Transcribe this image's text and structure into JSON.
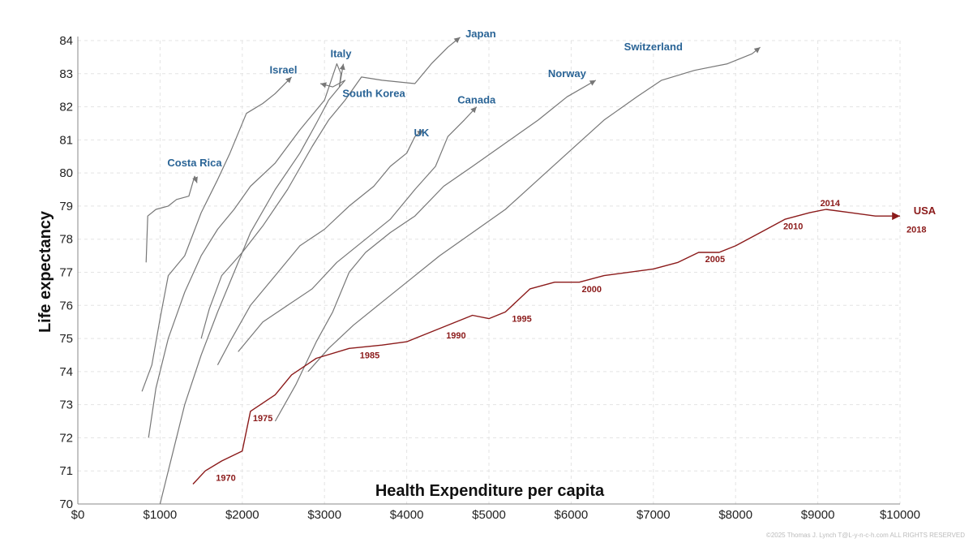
{
  "chart_data": {
    "type": "line",
    "xlabel": "Health Expenditure per capita",
    "ylabel": "Life expectancy",
    "xlim": [
      0,
      10000
    ],
    "ylim": [
      70,
      84
    ],
    "x_ticks": [
      0,
      1000,
      2000,
      3000,
      4000,
      5000,
      6000,
      7000,
      8000,
      9000,
      10000
    ],
    "x_tick_labels": [
      "$0",
      "$1000",
      "$2000",
      "$3000",
      "$4000",
      "$5000",
      "$6000",
      "$7000",
      "$8000",
      "$9000",
      "$10000"
    ],
    "y_ticks": [
      70,
      71,
      72,
      73,
      74,
      75,
      76,
      77,
      78,
      79,
      80,
      81,
      82,
      83,
      84
    ],
    "y_tick_labels": [
      "70",
      "71",
      "72",
      "73",
      "74",
      "75",
      "76",
      "77",
      "78",
      "79",
      "80",
      "81",
      "82",
      "83",
      "84"
    ],
    "grid": true,
    "colors": {
      "countries": "#777777",
      "country_labels": "#2a6496",
      "usa": "#8b1a1a"
    },
    "series": [
      {
        "name": "Costa Rica",
        "points": [
          [
            830,
            77.3
          ],
          [
            850,
            78.7
          ],
          [
            950,
            78.9
          ],
          [
            1100,
            79.0
          ],
          [
            1200,
            79.2
          ],
          [
            1350,
            79.3
          ],
          [
            1420,
            79.9
          ],
          [
            1450,
            79.7
          ]
        ]
      },
      {
        "name": "Israel",
        "points": [
          [
            780,
            73.4
          ],
          [
            900,
            74.2
          ],
          [
            1000,
            75.6
          ],
          [
            1100,
            76.9
          ],
          [
            1300,
            77.5
          ],
          [
            1500,
            78.8
          ],
          [
            1700,
            79.8
          ],
          [
            1850,
            80.6
          ],
          [
            2050,
            81.8
          ],
          [
            2250,
            82.1
          ],
          [
            2400,
            82.4
          ],
          [
            2600,
            82.9
          ]
        ]
      },
      {
        "name": "Italy",
        "points": [
          [
            860,
            72.0
          ],
          [
            950,
            73.5
          ],
          [
            1100,
            75.0
          ],
          [
            1300,
            76.4
          ],
          [
            1500,
            77.5
          ],
          [
            1700,
            78.3
          ],
          [
            1900,
            78.9
          ],
          [
            2100,
            79.6
          ],
          [
            2400,
            80.3
          ],
          [
            2700,
            81.3
          ],
          [
            3000,
            82.2
          ],
          [
            3150,
            83.3
          ],
          [
            3200,
            83.0
          ],
          [
            3180,
            82.6
          ],
          [
            3230,
            83.3
          ]
        ]
      },
      {
        "name": "South Korea",
        "points": [
          [
            1000,
            70.0
          ],
          [
            1150,
            71.5
          ],
          [
            1300,
            73.0
          ],
          [
            1500,
            74.5
          ],
          [
            1700,
            75.8
          ],
          [
            1900,
            77.0
          ],
          [
            2100,
            78.2
          ],
          [
            2400,
            79.5
          ],
          [
            2700,
            80.6
          ],
          [
            2900,
            81.5
          ],
          [
            3050,
            82.2
          ],
          [
            3250,
            82.8
          ],
          [
            3100,
            82.6
          ],
          [
            2950,
            82.7
          ]
        ]
      },
      {
        "name": "Japan",
        "points": [
          [
            1500,
            75.0
          ],
          [
            1600,
            75.9
          ],
          [
            1750,
            76.9
          ],
          [
            2000,
            77.6
          ],
          [
            2250,
            78.4
          ],
          [
            2550,
            79.5
          ],
          [
            2850,
            80.8
          ],
          [
            3050,
            81.6
          ],
          [
            3250,
            82.2
          ],
          [
            3450,
            82.9
          ],
          [
            3700,
            82.8
          ],
          [
            4100,
            82.7
          ],
          [
            4300,
            83.3
          ],
          [
            4500,
            83.8
          ],
          [
            4650,
            84.1
          ]
        ]
      },
      {
        "name": "UK",
        "points": [
          [
            1700,
            74.2
          ],
          [
            1850,
            74.9
          ],
          [
            2100,
            76.0
          ],
          [
            2400,
            76.9
          ],
          [
            2700,
            77.8
          ],
          [
            3000,
            78.3
          ],
          [
            3300,
            79.0
          ],
          [
            3600,
            79.6
          ],
          [
            3800,
            80.2
          ],
          [
            4000,
            80.6
          ],
          [
            4100,
            81.1
          ],
          [
            4200,
            81.3
          ]
        ]
      },
      {
        "name": "Canada",
        "points": [
          [
            1950,
            74.6
          ],
          [
            2250,
            75.5
          ],
          [
            2550,
            76.0
          ],
          [
            2850,
            76.5
          ],
          [
            3150,
            77.3
          ],
          [
            3500,
            78.0
          ],
          [
            3800,
            78.6
          ],
          [
            4100,
            79.5
          ],
          [
            4350,
            80.2
          ],
          [
            4500,
            81.1
          ],
          [
            4700,
            81.6
          ],
          [
            4850,
            82.0
          ]
        ]
      },
      {
        "name": "Norway",
        "points": [
          [
            2400,
            72.5
          ],
          [
            2650,
            73.6
          ],
          [
            2900,
            74.9
          ],
          [
            3100,
            75.8
          ],
          [
            3300,
            77.0
          ],
          [
            3500,
            77.6
          ],
          [
            3800,
            78.2
          ],
          [
            4100,
            78.7
          ],
          [
            4450,
            79.6
          ],
          [
            4800,
            80.2
          ],
          [
            5200,
            80.9
          ],
          [
            5600,
            81.6
          ],
          [
            5950,
            82.3
          ],
          [
            6300,
            82.8
          ]
        ]
      },
      {
        "name": "Switzerland",
        "points": [
          [
            2800,
            74.0
          ],
          [
            3050,
            74.7
          ],
          [
            3350,
            75.4
          ],
          [
            3700,
            76.1
          ],
          [
            4050,
            76.8
          ],
          [
            4400,
            77.5
          ],
          [
            4800,
            78.2
          ],
          [
            5200,
            78.9
          ],
          [
            5600,
            79.8
          ],
          [
            6000,
            80.7
          ],
          [
            6400,
            81.6
          ],
          [
            6800,
            82.3
          ],
          [
            7100,
            82.8
          ],
          [
            7500,
            83.1
          ],
          [
            7900,
            83.3
          ],
          [
            8200,
            83.6
          ],
          [
            8300,
            83.8
          ]
        ]
      },
      {
        "name": "USA",
        "points": [
          [
            1400,
            70.6
          ],
          [
            1550,
            71.0
          ],
          [
            1750,
            71.3
          ],
          [
            2000,
            71.6
          ],
          [
            2100,
            72.8
          ],
          [
            2400,
            73.3
          ],
          [
            2600,
            73.9
          ],
          [
            2900,
            74.4
          ],
          [
            3300,
            74.7
          ],
          [
            3700,
            74.8
          ],
          [
            4000,
            74.9
          ],
          [
            4300,
            75.2
          ],
          [
            4800,
            75.7
          ],
          [
            5000,
            75.6
          ],
          [
            5200,
            75.8
          ],
          [
            5500,
            76.5
          ],
          [
            5800,
            76.7
          ],
          [
            6100,
            76.7
          ],
          [
            6400,
            76.9
          ],
          [
            7000,
            77.1
          ],
          [
            7300,
            77.3
          ],
          [
            7550,
            77.6
          ],
          [
            7800,
            77.6
          ],
          [
            8000,
            77.8
          ],
          [
            8300,
            78.2
          ],
          [
            8600,
            78.6
          ],
          [
            8900,
            78.8
          ],
          [
            9100,
            78.9
          ],
          [
            9400,
            78.8
          ],
          [
            9700,
            78.7
          ],
          [
            10000,
            78.7
          ]
        ]
      }
    ],
    "label_positions": [
      {
        "name": "Costa Rica",
        "x": 1420,
        "y": 80.3
      },
      {
        "name": "Israel",
        "x": 2500,
        "y": 83.1
      },
      {
        "name": "Italy",
        "x": 3200,
        "y": 83.6
      },
      {
        "name": "South Korea",
        "x": 3600,
        "y": 82.4
      },
      {
        "name": "Japan",
        "x": 4900,
        "y": 84.2
      },
      {
        "name": "UK",
        "x": 4180,
        "y": 81.2
      },
      {
        "name": "Canada",
        "x": 4850,
        "y": 82.2
      },
      {
        "name": "Norway",
        "x": 5950,
        "y": 83.0
      },
      {
        "name": "Switzerland",
        "x": 7000,
        "y": 83.8
      },
      {
        "name": "USA",
        "x": 10300,
        "y": 78.9
      }
    ],
    "usa_year_labels": [
      {
        "year": "1970",
        "x": 1800,
        "y": 70.8
      },
      {
        "year": "1975",
        "x": 2250,
        "y": 72.6
      },
      {
        "year": "1985",
        "x": 3550,
        "y": 74.5
      },
      {
        "year": "1990",
        "x": 4600,
        "y": 75.1
      },
      {
        "year": "1995",
        "x": 5400,
        "y": 75.6
      },
      {
        "year": "2000",
        "x": 6250,
        "y": 76.5
      },
      {
        "year": "2005",
        "x": 7750,
        "y": 77.4
      },
      {
        "year": "2010",
        "x": 8700,
        "y": 78.4
      },
      {
        "year": "2014",
        "x": 9150,
        "y": 79.1
      },
      {
        "year": "2018",
        "x": 10200,
        "y": 78.3
      }
    ]
  },
  "footer": "©2025 Thomas J. Lynch T@L-y-n-c-h.com ALL RIGHTS RESERVED"
}
